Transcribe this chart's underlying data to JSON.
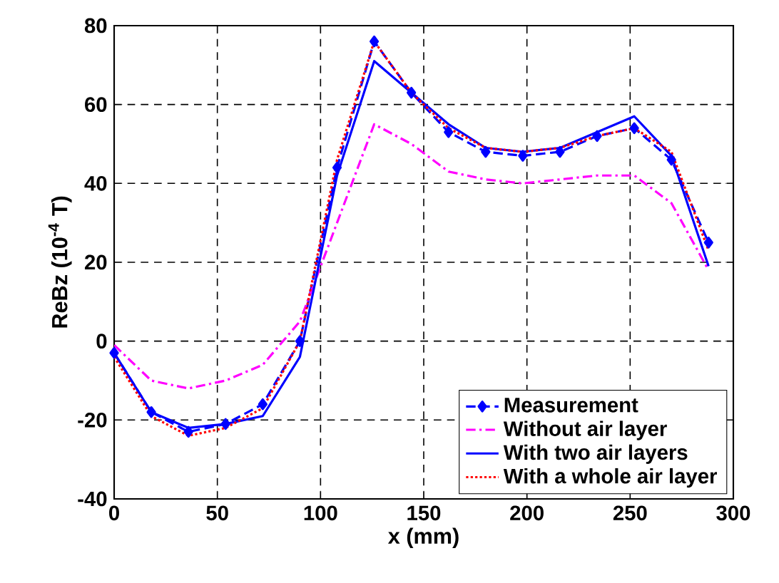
{
  "chart_data": {
    "type": "line",
    "xlabel": "x (mm)",
    "ylabel": "ReBz (10$^{-4}$ T)",
    "x": [
      0,
      18,
      36,
      54,
      72,
      90,
      108,
      126,
      144,
      162,
      180,
      198,
      216,
      234,
      252,
      270,
      288
    ],
    "series": [
      {
        "name": "Measurement",
        "color": "#0000ff",
        "marker": "diamond",
        "line_style": "dashed",
        "values": [
          -3,
          -18,
          -23,
          -21,
          -16,
          0,
          44,
          76,
          63,
          53,
          48,
          47,
          48,
          52,
          54,
          46,
          25
        ]
      },
      {
        "name": "Without air layer",
        "color": "#ff00ff",
        "marker": "none",
        "line_style": "dashdot",
        "values": [
          -1,
          -10,
          -12,
          -10,
          -6,
          5,
          30,
          55,
          50,
          43,
          41,
          40,
          41,
          42,
          42,
          35,
          18
        ]
      },
      {
        "name": "With two air layers",
        "color": "#0000ff",
        "marker": "none",
        "line_style": "solid",
        "values": [
          -3,
          -18,
          -22,
          -21,
          -19,
          -4,
          42,
          71,
          63,
          55,
          49,
          48,
          49,
          53,
          57,
          47,
          19
        ]
      },
      {
        "name": "With a whole air layer",
        "color": "#ff0000",
        "marker": "none",
        "line_style": "dotted",
        "values": [
          -4,
          -19,
          -24,
          -22,
          -17,
          0,
          46,
          76,
          63,
          54,
          49,
          48,
          49,
          52,
          54,
          48,
          23
        ]
      }
    ],
    "xlim": [
      0,
      300
    ],
    "ylim": [
      -40,
      80
    ],
    "xticks": [
      0,
      50,
      100,
      150,
      200,
      250,
      300
    ],
    "yticks": [
      -40,
      -20,
      0,
      20,
      40,
      60,
      80
    ],
    "grid": true,
    "legend": "bottom right"
  }
}
